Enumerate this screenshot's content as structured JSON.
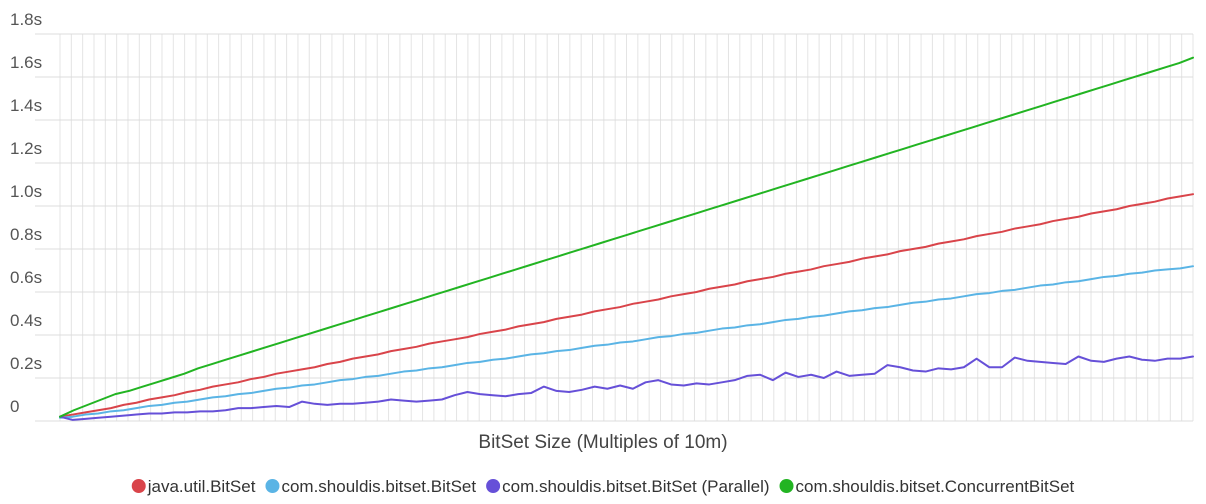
{
  "chart_data": {
    "type": "line",
    "title": "",
    "xlabel": "BitSet Size (Multiples of 10m)",
    "ylabel": "",
    "ylim": [
      0,
      1.8
    ],
    "yticks": [
      {
        "value": 0,
        "label": "0"
      },
      {
        "value": 0.2,
        "label": "0.2s"
      },
      {
        "value": 0.4,
        "label": "0.4s"
      },
      {
        "value": 0.6,
        "label": "0.6s"
      },
      {
        "value": 0.8,
        "label": "0.8s"
      },
      {
        "value": 1.0,
        "label": "1.0s"
      },
      {
        "value": 1.2,
        "label": "1.2s"
      },
      {
        "value": 1.4,
        "label": "1.4s"
      },
      {
        "value": 1.6,
        "label": "1.6s"
      },
      {
        "value": 1.8,
        "label": "1.8s"
      }
    ],
    "x_count": 101,
    "grid": true,
    "legend_position": "bottom",
    "series": [
      {
        "name": "java.util.BitSet",
        "color": "#d9444a",
        "values": [
          0.02,
          0.03,
          0.04,
          0.05,
          0.06,
          0.075,
          0.085,
          0.1,
          0.11,
          0.12,
          0.135,
          0.145,
          0.16,
          0.17,
          0.18,
          0.195,
          0.205,
          0.22,
          0.23,
          0.24,
          0.25,
          0.265,
          0.275,
          0.29,
          0.3,
          0.31,
          0.325,
          0.335,
          0.345,
          0.36,
          0.37,
          0.38,
          0.39,
          0.405,
          0.415,
          0.425,
          0.44,
          0.45,
          0.46,
          0.475,
          0.485,
          0.495,
          0.51,
          0.52,
          0.53,
          0.545,
          0.555,
          0.565,
          0.58,
          0.59,
          0.6,
          0.615,
          0.625,
          0.635,
          0.65,
          0.66,
          0.67,
          0.685,
          0.695,
          0.705,
          0.72,
          0.73,
          0.74,
          0.755,
          0.765,
          0.775,
          0.79,
          0.8,
          0.81,
          0.825,
          0.835,
          0.845,
          0.86,
          0.87,
          0.88,
          0.895,
          0.905,
          0.915,
          0.93,
          0.94,
          0.95,
          0.965,
          0.975,
          0.985,
          1.0,
          1.01,
          1.02,
          1.035,
          1.045,
          1.055
        ]
      },
      {
        "name": "com.shouldis.bitset.BitSet",
        "color": "#5ab4e5",
        "values": [
          0.015,
          0.02,
          0.03,
          0.035,
          0.045,
          0.05,
          0.06,
          0.07,
          0.075,
          0.085,
          0.09,
          0.1,
          0.11,
          0.115,
          0.125,
          0.13,
          0.14,
          0.15,
          0.155,
          0.165,
          0.17,
          0.18,
          0.19,
          0.195,
          0.205,
          0.21,
          0.22,
          0.23,
          0.235,
          0.245,
          0.25,
          0.26,
          0.27,
          0.275,
          0.285,
          0.29,
          0.3,
          0.31,
          0.315,
          0.325,
          0.33,
          0.34,
          0.35,
          0.355,
          0.365,
          0.37,
          0.38,
          0.39,
          0.395,
          0.405,
          0.41,
          0.42,
          0.43,
          0.435,
          0.445,
          0.45,
          0.46,
          0.47,
          0.475,
          0.485,
          0.49,
          0.5,
          0.51,
          0.515,
          0.525,
          0.53,
          0.54,
          0.55,
          0.555,
          0.565,
          0.57,
          0.58,
          0.59,
          0.595,
          0.605,
          0.61,
          0.62,
          0.63,
          0.635,
          0.645,
          0.65,
          0.66,
          0.67,
          0.675,
          0.685,
          0.69,
          0.7,
          0.705,
          0.71,
          0.72
        ]
      },
      {
        "name": "com.shouldis.bitset.BitSet (Parallel)",
        "color": "#6650d8",
        "values": [
          0.02,
          0.005,
          0.01,
          0.015,
          0.02,
          0.025,
          0.03,
          0.035,
          0.035,
          0.04,
          0.04,
          0.045,
          0.045,
          0.05,
          0.06,
          0.06,
          0.065,
          0.07,
          0.065,
          0.09,
          0.08,
          0.075,
          0.08,
          0.08,
          0.085,
          0.09,
          0.1,
          0.095,
          0.09,
          0.095,
          0.1,
          0.12,
          0.135,
          0.125,
          0.12,
          0.115,
          0.125,
          0.13,
          0.16,
          0.14,
          0.135,
          0.145,
          0.16,
          0.15,
          0.165,
          0.15,
          0.18,
          0.19,
          0.17,
          0.165,
          0.175,
          0.17,
          0.18,
          0.19,
          0.21,
          0.215,
          0.19,
          0.225,
          0.205,
          0.215,
          0.2,
          0.23,
          0.21,
          0.215,
          0.22,
          0.26,
          0.25,
          0.235,
          0.23,
          0.245,
          0.24,
          0.25,
          0.29,
          0.25,
          0.25,
          0.295,
          0.28,
          0.275,
          0.27,
          0.265,
          0.3,
          0.28,
          0.275,
          0.29,
          0.3,
          0.285,
          0.28,
          0.29,
          0.29,
          0.3
        ]
      },
      {
        "name": "com.shouldis.bitset.ConcurrentBitSet",
        "color": "#22b422",
        "values": [
          0.02,
          0.05,
          0.075,
          0.1,
          0.125,
          0.14,
          0.16,
          0.18,
          0.2,
          0.22,
          0.245,
          0.265,
          0.285,
          0.305,
          0.325,
          0.345,
          0.365,
          0.385,
          0.405,
          0.425,
          0.445,
          0.465,
          0.485,
          0.505,
          0.525,
          0.545,
          0.565,
          0.585,
          0.605,
          0.625,
          0.645,
          0.665,
          0.685,
          0.705,
          0.725,
          0.745,
          0.765,
          0.785,
          0.805,
          0.825,
          0.845,
          0.865,
          0.885,
          0.905,
          0.925,
          0.945,
          0.965,
          0.985,
          1.005,
          1.025,
          1.045,
          1.065,
          1.085,
          1.105,
          1.125,
          1.145,
          1.165,
          1.185,
          1.205,
          1.225,
          1.245,
          1.265,
          1.285,
          1.305,
          1.325,
          1.345,
          1.365,
          1.385,
          1.405,
          1.425,
          1.445,
          1.465,
          1.485,
          1.505,
          1.525,
          1.545,
          1.565,
          1.585,
          1.605,
          1.625,
          1.645,
          1.665,
          1.69
        ]
      }
    ]
  }
}
